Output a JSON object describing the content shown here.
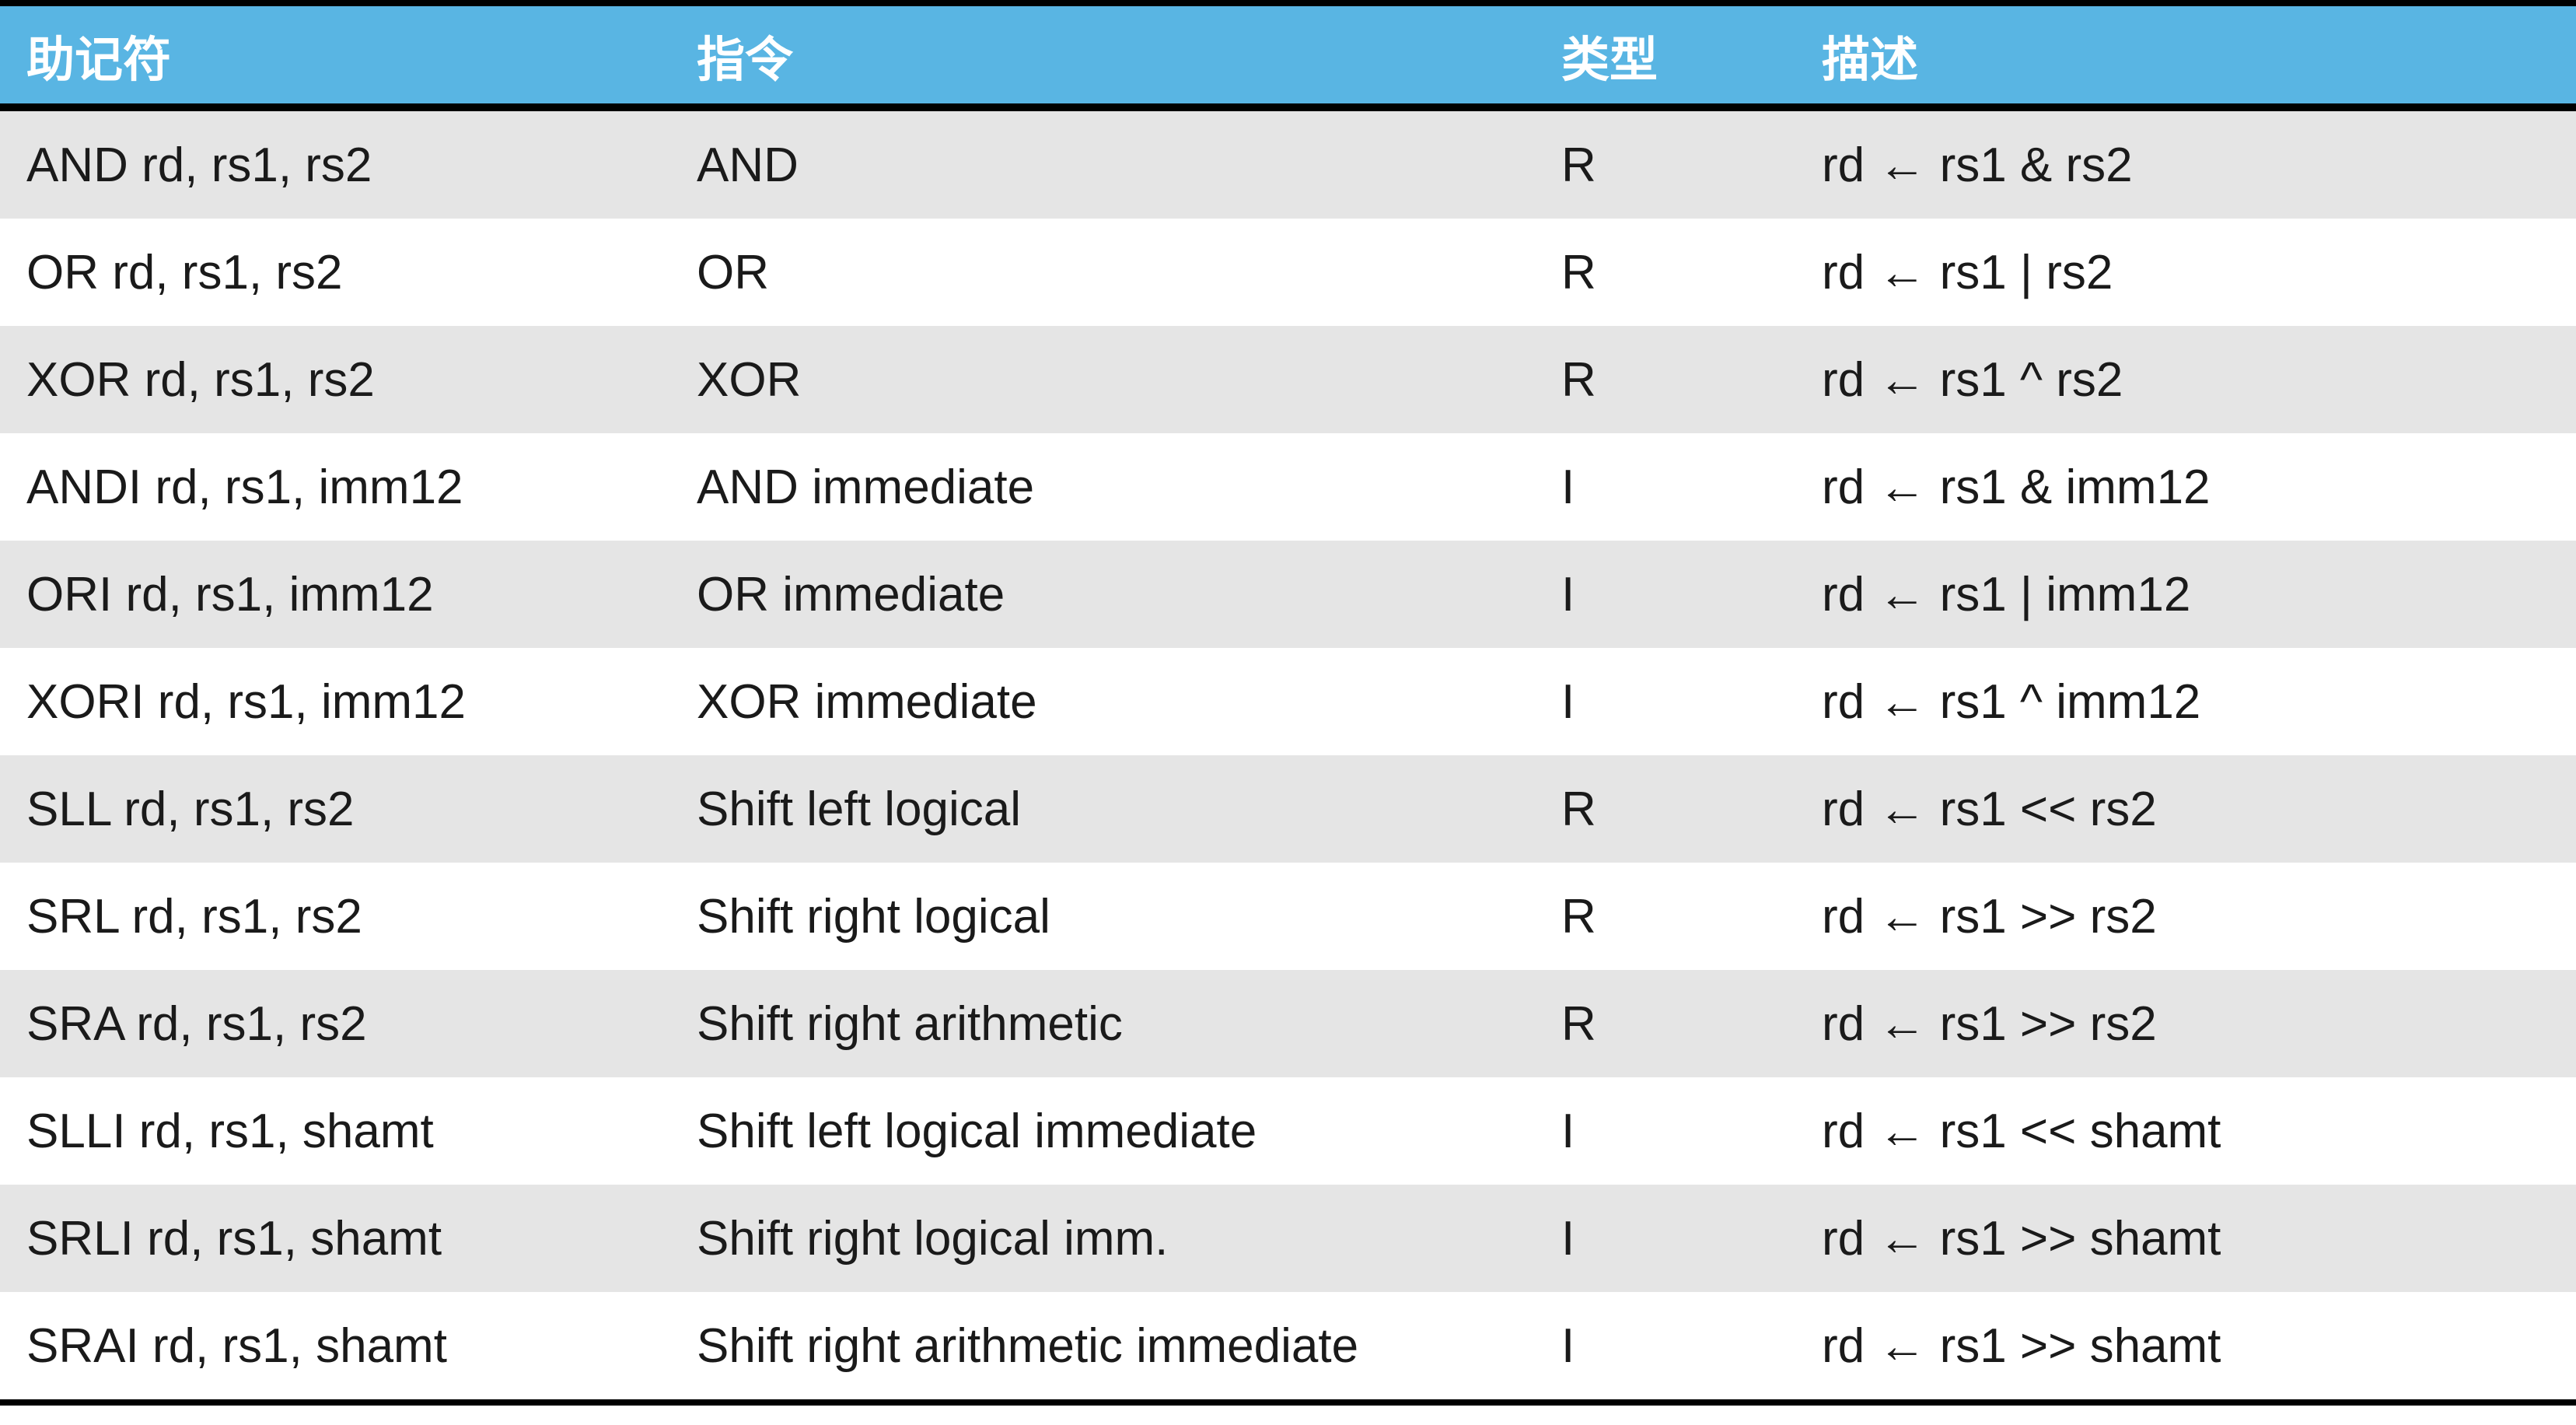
{
  "header": {
    "col1": "助记符",
    "col2": "指令",
    "col3": "类型",
    "col4": "描述"
  },
  "rows": [
    {
      "mnemonic": "AND rd, rs1, rs2",
      "instruction": "AND",
      "type": "R",
      "description": "rd ← rs1 & rs2"
    },
    {
      "mnemonic": "OR rd, rs1, rs2",
      "instruction": "OR",
      "type": "R",
      "description": "rd ← rs1 | rs2"
    },
    {
      "mnemonic": "XOR rd, rs1, rs2",
      "instruction": "XOR",
      "type": "R",
      "description": "rd ← rs1 ^ rs2"
    },
    {
      "mnemonic": "ANDI rd, rs1, imm12",
      "instruction": "AND immediate",
      "type": "I",
      "description": "rd ← rs1 & imm12"
    },
    {
      "mnemonic": "ORI rd, rs1, imm12",
      "instruction": "OR immediate",
      "type": "I",
      "description": "rd ← rs1 | imm12"
    },
    {
      "mnemonic": "XORI rd, rs1, imm12",
      "instruction": "XOR immediate",
      "type": "I",
      "description": "rd ← rs1 ^ imm12"
    },
    {
      "mnemonic": "SLL rd, rs1, rs2",
      "instruction": "Shift left logical",
      "type": "R",
      "description": "rd ← rs1 << rs2"
    },
    {
      "mnemonic": "SRL rd, rs1, rs2",
      "instruction": "Shift right logical",
      "type": "R",
      "description": "rd ← rs1 >> rs2"
    },
    {
      "mnemonic": "SRA rd, rs1, rs2",
      "instruction": "Shift right arithmetic",
      "type": "R",
      "description": "rd ← rs1 >> rs2"
    },
    {
      "mnemonic": "SLLI rd, rs1, shamt",
      "instruction": "Shift left logical immediate",
      "type": "I",
      "description": "rd ← rs1 << shamt"
    },
    {
      "mnemonic": "SRLI rd, rs1, shamt",
      "instruction": "Shift right logical imm.",
      "type": "I",
      "description": "rd ← rs1 >> shamt"
    },
    {
      "mnemonic": "SRAI rd, rs1, shamt",
      "instruction": "Shift right arithmetic immediate",
      "type": "I",
      "description": "rd ← rs1 >> shamt"
    }
  ],
  "colors": {
    "header_bg": "#59b5e3",
    "header_text": "#ffffff",
    "row_shaded": "#e5e5e5",
    "row_plain": "#ffffff",
    "rule": "#000000"
  }
}
